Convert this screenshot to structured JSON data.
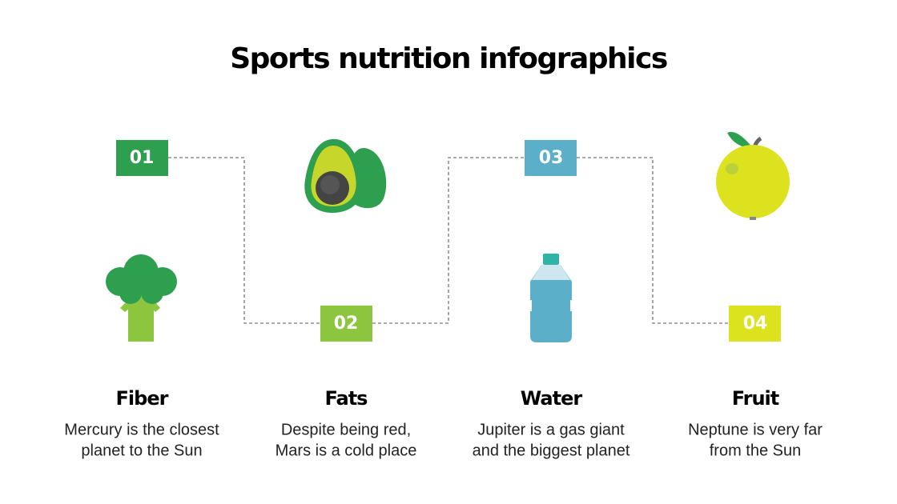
{
  "title": "Sports nutrition infographics",
  "items": [
    {
      "number": "01",
      "heading": "Fiber",
      "text": [
        "Mercury is the closest",
        "planet to the Sun"
      ]
    },
    {
      "number": "02",
      "heading": "Fats",
      "text": [
        "Despite being red,",
        "Mars is a cold place"
      ]
    },
    {
      "number": "03",
      "heading": "Water",
      "text": [
        "Jupiter is a gas giant",
        "and the biggest planet"
      ]
    },
    {
      "number": "04",
      "heading": "Fruit",
      "text": [
        "Neptune is very far",
        "from the Sun"
      ]
    }
  ]
}
